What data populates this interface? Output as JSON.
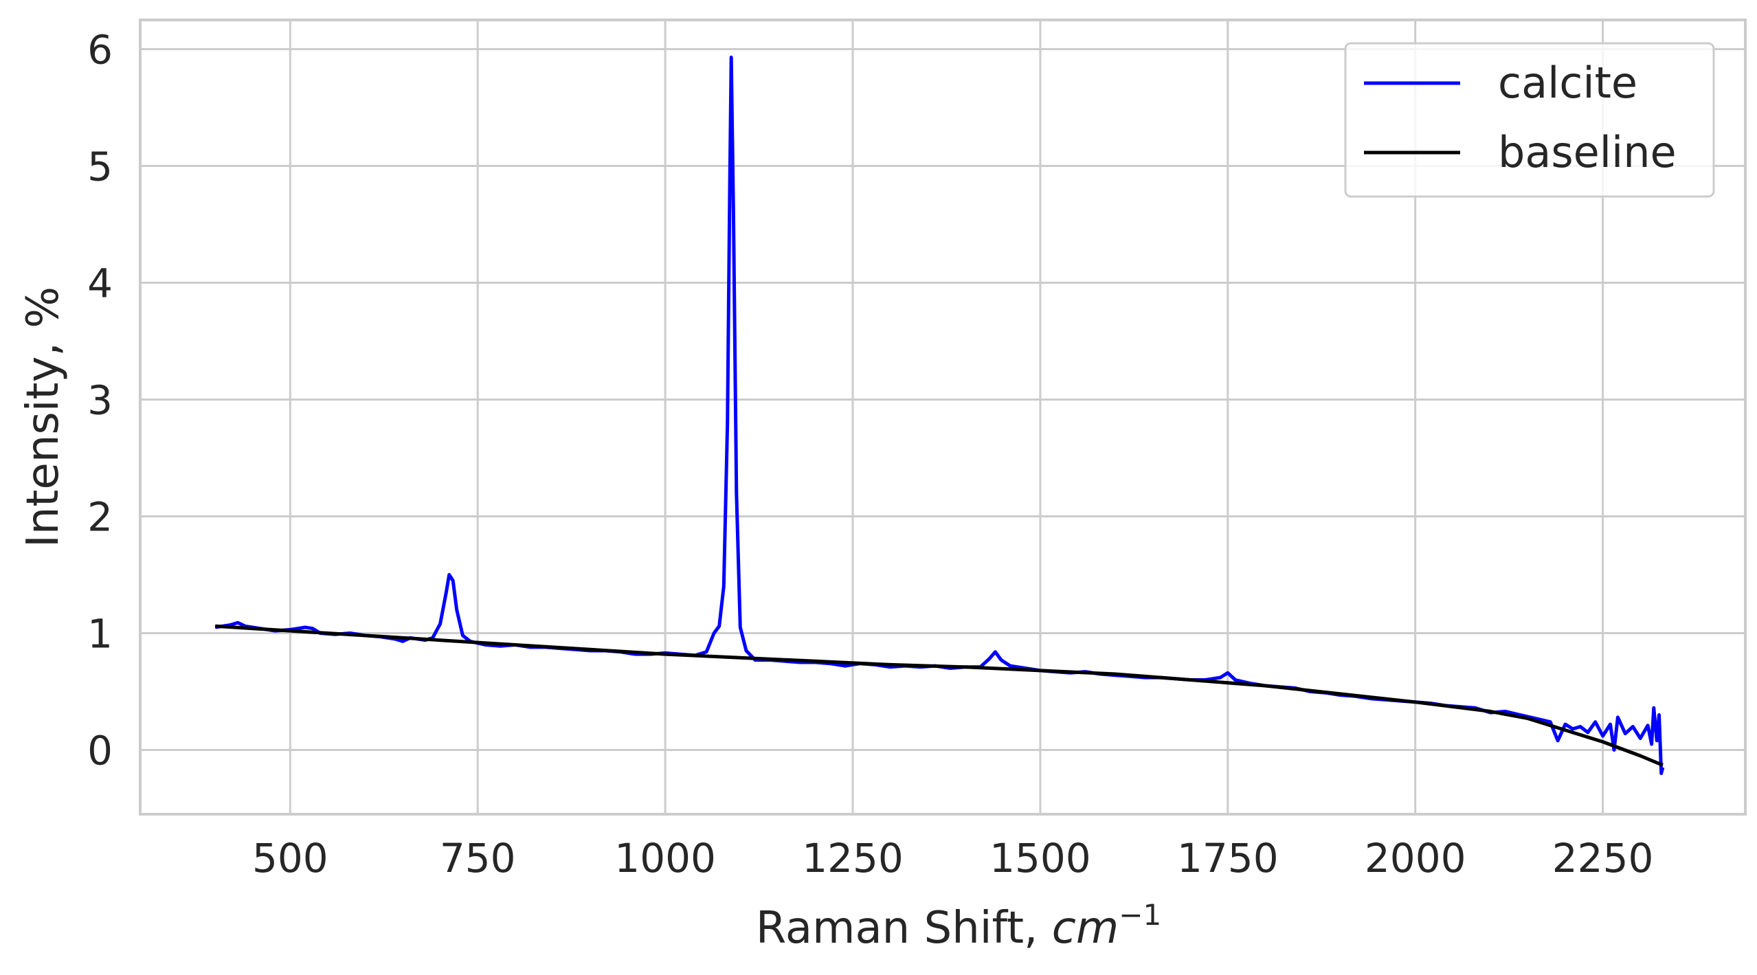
{
  "chart_data": {
    "type": "line",
    "title": "",
    "xlabel": "Raman Shift, ",
    "xlabel_math": "cm",
    "xlabel_sup": "−1",
    "ylabel": "Intensity, %",
    "xlim": [
      300,
      2440
    ],
    "ylim": [
      -0.55,
      6.25
    ],
    "xticks": [
      500,
      750,
      1000,
      1250,
      1500,
      1750,
      2000,
      2250
    ],
    "yticks": [
      0,
      1,
      2,
      3,
      4,
      5,
      6
    ],
    "grid": true,
    "legend_position": "top-right",
    "series": [
      {
        "name": "calcite",
        "color": "#0000ff",
        "points": [
          [
            400,
            1.05
          ],
          [
            420,
            1.07
          ],
          [
            430,
            1.09
          ],
          [
            440,
            1.06
          ],
          [
            460,
            1.04
          ],
          [
            480,
            1.02
          ],
          [
            500,
            1.03
          ],
          [
            510,
            1.04
          ],
          [
            520,
            1.05
          ],
          [
            530,
            1.04
          ],
          [
            540,
            1.0
          ],
          [
            560,
            0.99
          ],
          [
            580,
            1.0
          ],
          [
            600,
            0.98
          ],
          [
            620,
            0.97
          ],
          [
            640,
            0.95
          ],
          [
            650,
            0.93
          ],
          [
            660,
            0.96
          ],
          [
            680,
            0.94
          ],
          [
            690,
            0.96
          ],
          [
            700,
            1.08
          ],
          [
            708,
            1.35
          ],
          [
            712,
            1.5
          ],
          [
            717,
            1.45
          ],
          [
            722,
            1.2
          ],
          [
            730,
            0.98
          ],
          [
            740,
            0.93
          ],
          [
            760,
            0.9
          ],
          [
            780,
            0.89
          ],
          [
            800,
            0.9
          ],
          [
            820,
            0.88
          ],
          [
            840,
            0.88
          ],
          [
            860,
            0.87
          ],
          [
            880,
            0.86
          ],
          [
            900,
            0.85
          ],
          [
            920,
            0.85
          ],
          [
            940,
            0.84
          ],
          [
            960,
            0.82
          ],
          [
            980,
            0.82
          ],
          [
            1000,
            0.83
          ],
          [
            1020,
            0.82
          ],
          [
            1040,
            0.81
          ],
          [
            1055,
            0.84
          ],
          [
            1065,
            1.0
          ],
          [
            1072,
            1.06
          ],
          [
            1078,
            1.4
          ],
          [
            1083,
            2.8
          ],
          [
            1086,
            4.8
          ],
          [
            1088,
            5.93
          ],
          [
            1091,
            4.6
          ],
          [
            1095,
            2.2
          ],
          [
            1100,
            1.05
          ],
          [
            1108,
            0.85
          ],
          [
            1120,
            0.77
          ],
          [
            1140,
            0.77
          ],
          [
            1160,
            0.76
          ],
          [
            1180,
            0.75
          ],
          [
            1200,
            0.75
          ],
          [
            1220,
            0.74
          ],
          [
            1240,
            0.72
          ],
          [
            1260,
            0.74
          ],
          [
            1280,
            0.73
          ],
          [
            1300,
            0.71
          ],
          [
            1320,
            0.72
          ],
          [
            1340,
            0.71
          ],
          [
            1360,
            0.72
          ],
          [
            1380,
            0.7
          ],
          [
            1400,
            0.71
          ],
          [
            1420,
            0.71
          ],
          [
            1432,
            0.78
          ],
          [
            1440,
            0.84
          ],
          [
            1448,
            0.77
          ],
          [
            1460,
            0.72
          ],
          [
            1480,
            0.7
          ],
          [
            1500,
            0.68
          ],
          [
            1520,
            0.67
          ],
          [
            1540,
            0.66
          ],
          [
            1560,
            0.67
          ],
          [
            1580,
            0.65
          ],
          [
            1600,
            0.64
          ],
          [
            1620,
            0.63
          ],
          [
            1640,
            0.62
          ],
          [
            1660,
            0.62
          ],
          [
            1680,
            0.61
          ],
          [
            1700,
            0.6
          ],
          [
            1720,
            0.6
          ],
          [
            1740,
            0.62
          ],
          [
            1750,
            0.66
          ],
          [
            1760,
            0.6
          ],
          [
            1780,
            0.57
          ],
          [
            1800,
            0.55
          ],
          [
            1820,
            0.54
          ],
          [
            1840,
            0.53
          ],
          [
            1860,
            0.5
          ],
          [
            1880,
            0.49
          ],
          [
            1900,
            0.47
          ],
          [
            1920,
            0.46
          ],
          [
            1940,
            0.44
          ],
          [
            1960,
            0.43
          ],
          [
            1980,
            0.42
          ],
          [
            2000,
            0.41
          ],
          [
            2020,
            0.4
          ],
          [
            2040,
            0.38
          ],
          [
            2060,
            0.37
          ],
          [
            2080,
            0.36
          ],
          [
            2100,
            0.32
          ],
          [
            2120,
            0.33
          ],
          [
            2140,
            0.3
          ],
          [
            2160,
            0.27
          ],
          [
            2180,
            0.24
          ],
          [
            2190,
            0.08
          ],
          [
            2200,
            0.22
          ],
          [
            2210,
            0.18
          ],
          [
            2220,
            0.2
          ],
          [
            2230,
            0.15
          ],
          [
            2240,
            0.24
          ],
          [
            2250,
            0.12
          ],
          [
            2260,
            0.22
          ],
          [
            2265,
            0.0
          ],
          [
            2270,
            0.28
          ],
          [
            2280,
            0.14
          ],
          [
            2290,
            0.2
          ],
          [
            2300,
            0.1
          ],
          [
            2310,
            0.21
          ],
          [
            2315,
            0.05
          ],
          [
            2318,
            0.36
          ],
          [
            2322,
            0.08
          ],
          [
            2325,
            0.3
          ],
          [
            2328,
            -0.2
          ],
          [
            2330,
            -0.15
          ]
        ]
      },
      {
        "name": "baseline",
        "color": "#000000",
        "points": [
          [
            400,
            1.06
          ],
          [
            500,
            1.02
          ],
          [
            600,
            0.98
          ],
          [
            700,
            0.94
          ],
          [
            800,
            0.9
          ],
          [
            900,
            0.86
          ],
          [
            1000,
            0.82
          ],
          [
            1100,
            0.79
          ],
          [
            1200,
            0.76
          ],
          [
            1300,
            0.73
          ],
          [
            1400,
            0.71
          ],
          [
            1500,
            0.68
          ],
          [
            1600,
            0.65
          ],
          [
            1700,
            0.6
          ],
          [
            1800,
            0.55
          ],
          [
            1900,
            0.48
          ],
          [
            2000,
            0.41
          ],
          [
            2100,
            0.33
          ],
          [
            2150,
            0.27
          ],
          [
            2200,
            0.17
          ],
          [
            2250,
            0.07
          ],
          [
            2300,
            -0.05
          ],
          [
            2330,
            -0.13
          ]
        ]
      }
    ]
  }
}
